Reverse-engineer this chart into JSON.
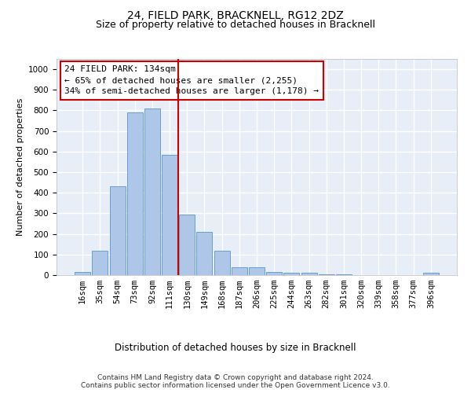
{
  "title": "24, FIELD PARK, BRACKNELL, RG12 2DZ",
  "subtitle": "Size of property relative to detached houses in Bracknell",
  "xlabel": "Distribution of detached houses by size in Bracknell",
  "ylabel": "Number of detached properties",
  "categories": [
    "16sqm",
    "35sqm",
    "54sqm",
    "73sqm",
    "92sqm",
    "111sqm",
    "130sqm",
    "149sqm",
    "168sqm",
    "187sqm",
    "206sqm",
    "225sqm",
    "244sqm",
    "263sqm",
    "282sqm",
    "301sqm",
    "320sqm",
    "339sqm",
    "358sqm",
    "377sqm",
    "396sqm"
  ],
  "bar_heights": [
    15,
    120,
    430,
    790,
    810,
    585,
    295,
    210,
    120,
    40,
    40,
    15,
    10,
    10,
    5,
    5,
    0,
    0,
    0,
    0,
    10
  ],
  "bar_color": "#aec6e8",
  "bar_edge_color": "#5a96cc",
  "annotation_text": "24 FIELD PARK: 134sqm\n← 65% of detached houses are smaller (2,255)\n34% of semi-detached houses are larger (1,178) →",
  "annotation_box_color": "#ffffff",
  "annotation_box_edge_color": "#cc0000",
  "vline_color": "#cc0000",
  "ylim": [
    0,
    1050
  ],
  "background_color": "#e8eef8",
  "grid_color": "#ffffff",
  "footer_text": "Contains HM Land Registry data © Crown copyright and database right 2024.\nContains public sector information licensed under the Open Government Licence v3.0.",
  "title_fontsize": 10,
  "subtitle_fontsize": 9,
  "tick_fontsize": 7.5,
  "ylabel_fontsize": 8,
  "xlabel_fontsize": 8.5,
  "annotation_fontsize": 8,
  "footer_fontsize": 6.5
}
